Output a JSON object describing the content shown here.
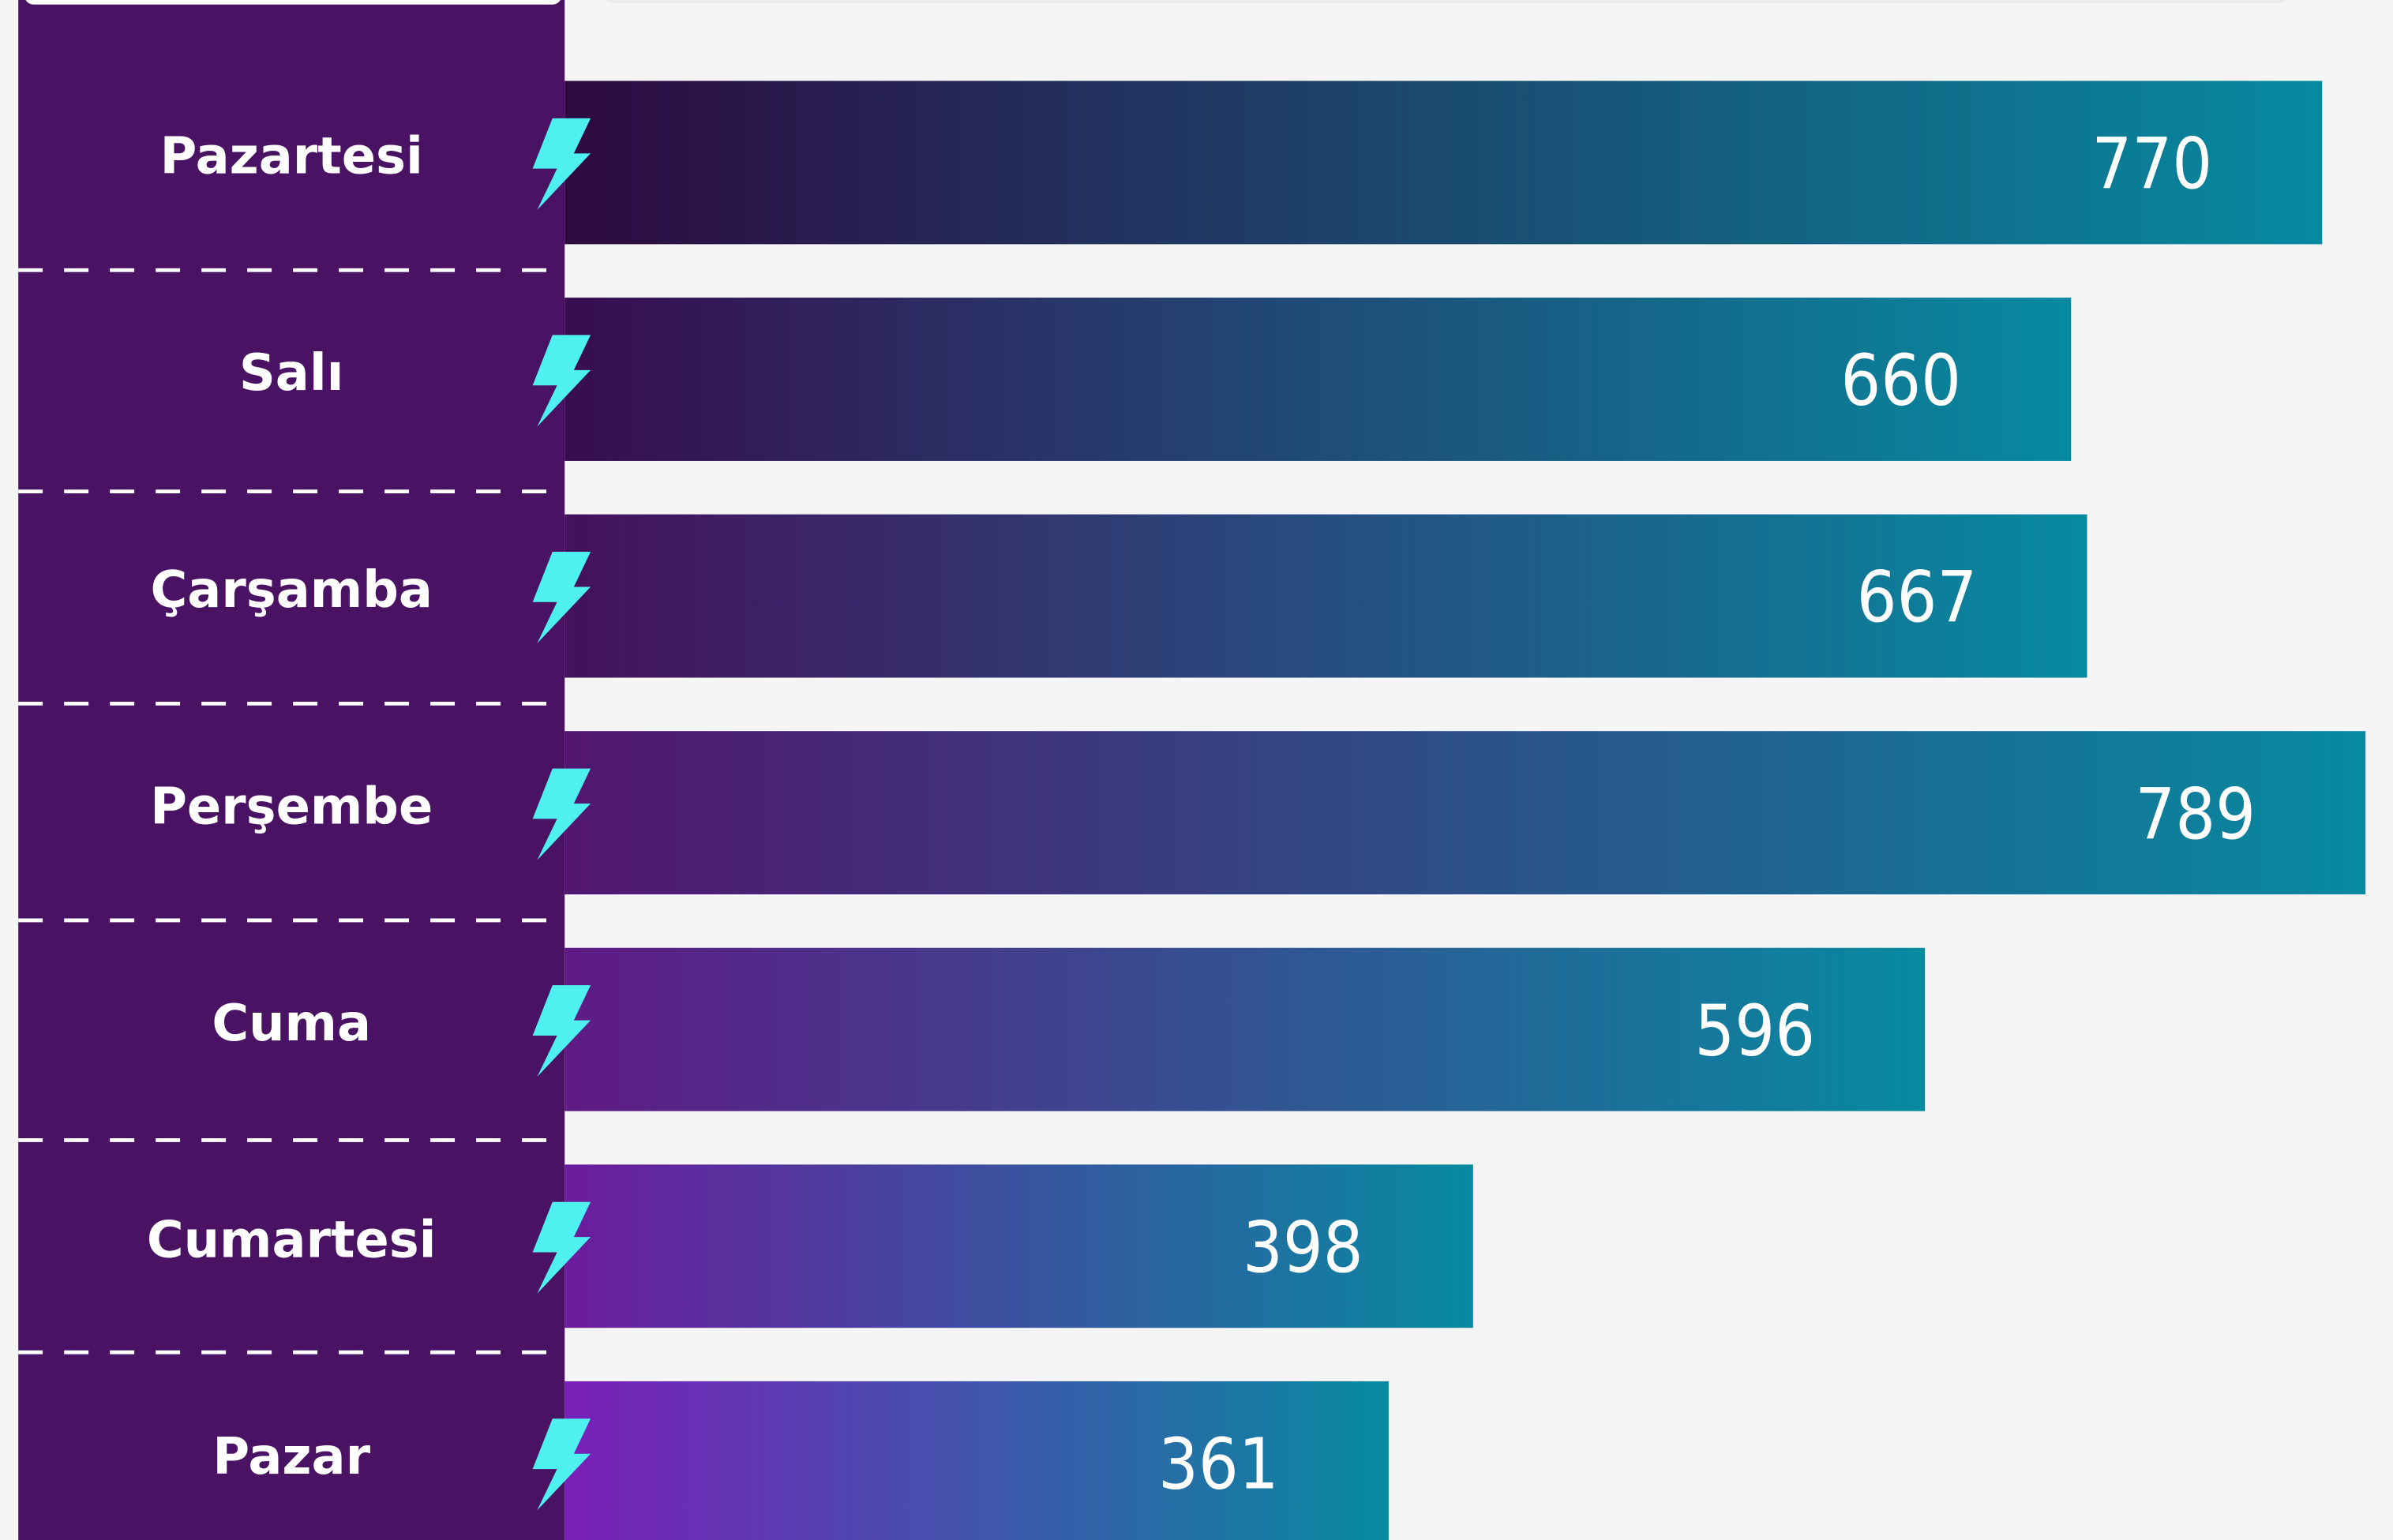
{
  "chart_data": {
    "type": "bar",
    "orientation": "horizontal",
    "categories": [
      "Pazartesi",
      "Salı",
      "Çarşamba",
      "Perşembe",
      "Cuma",
      "Cumartesi",
      "Pazar"
    ],
    "values": [
      770,
      660,
      667,
      789,
      596,
      398,
      361
    ],
    "gradient_start": [
      "#2e0a40",
      "#380d4f",
      "#45115c",
      "#521670",
      "#5f1a85",
      "#6c1c9e",
      "#7a1fb8"
    ],
    "gradient_end": "#078aa0",
    "label_panel_color": "#4a1263",
    "icon_color": "#4ff0f0"
  }
}
